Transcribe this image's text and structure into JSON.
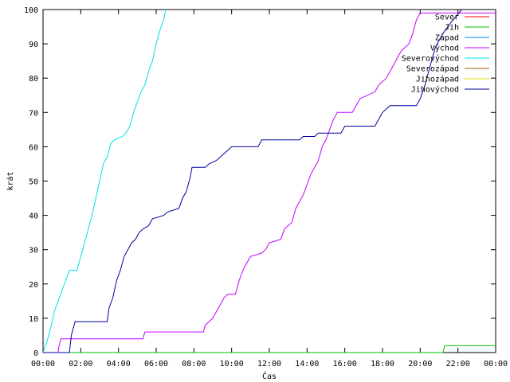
{
  "chart_data": {
    "type": "line",
    "title": "",
    "xlabel": "Čas",
    "ylabel": "krát",
    "xlim": [
      0,
      24
    ],
    "ylim": [
      0,
      100
    ],
    "x_tick_labels": [
      "00:00",
      "02:00",
      "04:00",
      "06:00",
      "08:00",
      "10:00",
      "12:00",
      "14:00",
      "16:00",
      "18:00",
      "20:00",
      "22:00",
      "00:00"
    ],
    "x_tick_values": [
      0,
      2,
      4,
      6,
      8,
      10,
      12,
      14,
      16,
      18,
      20,
      22,
      24
    ],
    "y_tick_values": [
      0,
      10,
      20,
      30,
      40,
      50,
      60,
      70,
      80,
      90,
      100
    ],
    "legend_position": "top-right",
    "series": [
      {
        "name": "Sever",
        "color": "#ff0000",
        "points": []
      },
      {
        "name": "Jih",
        "color": "#00c000",
        "points": [
          [
            0,
            0
          ],
          [
            21.2,
            0
          ],
          [
            21.3,
            2
          ],
          [
            24,
            2
          ]
        ]
      },
      {
        "name": "Západ",
        "color": "#0080ff",
        "points": []
      },
      {
        "name": "Východ",
        "color": "#c000ff",
        "points": [
          [
            0,
            0
          ],
          [
            0.8,
            0
          ],
          [
            0.85,
            2
          ],
          [
            0.95,
            4
          ],
          [
            5.3,
            4
          ],
          [
            5.4,
            6
          ],
          [
            8.5,
            6
          ],
          [
            8.6,
            8
          ],
          [
            8.8,
            9
          ],
          [
            9.0,
            10
          ],
          [
            9.2,
            12
          ],
          [
            9.4,
            14
          ],
          [
            9.6,
            16
          ],
          [
            9.8,
            17
          ],
          [
            10.2,
            17
          ],
          [
            10.4,
            21
          ],
          [
            10.6,
            24
          ],
          [
            10.8,
            26
          ],
          [
            11.0,
            28
          ],
          [
            11.6,
            29
          ],
          [
            11.8,
            30
          ],
          [
            12.0,
            32
          ],
          [
            12.6,
            33
          ],
          [
            12.8,
            36
          ],
          [
            13.2,
            38
          ],
          [
            13.4,
            42
          ],
          [
            13.6,
            44
          ],
          [
            13.8,
            46
          ],
          [
            14.0,
            49
          ],
          [
            14.2,
            52
          ],
          [
            14.4,
            54
          ],
          [
            14.6,
            56
          ],
          [
            14.8,
            60
          ],
          [
            15.0,
            62
          ],
          [
            15.2,
            65
          ],
          [
            15.4,
            68
          ],
          [
            15.6,
            70
          ],
          [
            16.4,
            70
          ],
          [
            16.6,
            72
          ],
          [
            16.8,
            74
          ],
          [
            17.6,
            76
          ],
          [
            17.8,
            78
          ],
          [
            18.2,
            80
          ],
          [
            18.4,
            82
          ],
          [
            18.6,
            84
          ],
          [
            18.8,
            86
          ],
          [
            19.0,
            88
          ],
          [
            19.2,
            89
          ],
          [
            19.4,
            90
          ],
          [
            19.6,
            93
          ],
          [
            19.8,
            97
          ],
          [
            20.0,
            99
          ],
          [
            24,
            99
          ]
        ]
      },
      {
        "name": "Severovýchod",
        "color": "#00e0e0",
        "points": [
          [
            0,
            0
          ],
          [
            0.2,
            3
          ],
          [
            0.4,
            7
          ],
          [
            0.6,
            12
          ],
          [
            0.8,
            15
          ],
          [
            1.0,
            18
          ],
          [
            1.2,
            21
          ],
          [
            1.4,
            24
          ],
          [
            1.8,
            24
          ],
          [
            2.0,
            28
          ],
          [
            2.2,
            32
          ],
          [
            2.4,
            36
          ],
          [
            2.6,
            40
          ],
          [
            2.8,
            45
          ],
          [
            3.0,
            50
          ],
          [
            3.2,
            55
          ],
          [
            3.4,
            57
          ],
          [
            3.6,
            61
          ],
          [
            3.8,
            62
          ],
          [
            4.2,
            63
          ],
          [
            4.4,
            64
          ],
          [
            4.6,
            66
          ],
          [
            4.8,
            70
          ],
          [
            5.0,
            73
          ],
          [
            5.2,
            76
          ],
          [
            5.4,
            78
          ],
          [
            5.6,
            82
          ],
          [
            5.8,
            85
          ],
          [
            6.0,
            90
          ],
          [
            6.2,
            94
          ],
          [
            6.4,
            97
          ],
          [
            6.5,
            100
          ]
        ]
      },
      {
        "name": "Severozápad",
        "color": "#a06000",
        "points": []
      },
      {
        "name": "Jihozápad",
        "color": "#e0e000",
        "points": []
      },
      {
        "name": "Jihovýchod",
        "color": "#0000a0",
        "points": [
          [
            0,
            0
          ],
          [
            1.4,
            0
          ],
          [
            1.5,
            5
          ],
          [
            1.7,
            9
          ],
          [
            3.4,
            9
          ],
          [
            3.5,
            13
          ],
          [
            3.7,
            16
          ],
          [
            3.9,
            21
          ],
          [
            4.1,
            24
          ],
          [
            4.3,
            28
          ],
          [
            4.5,
            30
          ],
          [
            4.7,
            32
          ],
          [
            4.9,
            33
          ],
          [
            5.1,
            35
          ],
          [
            5.3,
            36
          ],
          [
            5.6,
            37
          ],
          [
            5.8,
            39
          ],
          [
            6.4,
            40
          ],
          [
            6.6,
            41
          ],
          [
            7.2,
            42
          ],
          [
            7.4,
            45
          ],
          [
            7.6,
            47
          ],
          [
            7.8,
            51
          ],
          [
            7.9,
            54
          ],
          [
            8.6,
            54
          ],
          [
            8.8,
            55
          ],
          [
            9.2,
            56
          ],
          [
            9.6,
            58
          ],
          [
            9.8,
            59
          ],
          [
            10.0,
            60
          ],
          [
            11.4,
            60
          ],
          [
            11.6,
            62
          ],
          [
            13.6,
            62
          ],
          [
            13.8,
            63
          ],
          [
            14.4,
            63
          ],
          [
            14.6,
            64
          ],
          [
            15.8,
            64
          ],
          [
            16.0,
            66
          ],
          [
            17.6,
            66
          ],
          [
            17.8,
            68
          ],
          [
            18.0,
            70
          ],
          [
            18.2,
            71
          ],
          [
            18.4,
            72
          ],
          [
            19.8,
            72
          ],
          [
            20.0,
            74
          ],
          [
            20.2,
            77
          ],
          [
            20.4,
            81
          ],
          [
            20.6,
            85
          ],
          [
            20.8,
            89
          ],
          [
            21.2,
            93
          ],
          [
            21.6,
            96
          ],
          [
            21.9,
            98
          ],
          [
            22.2,
            100
          ]
        ]
      }
    ]
  }
}
